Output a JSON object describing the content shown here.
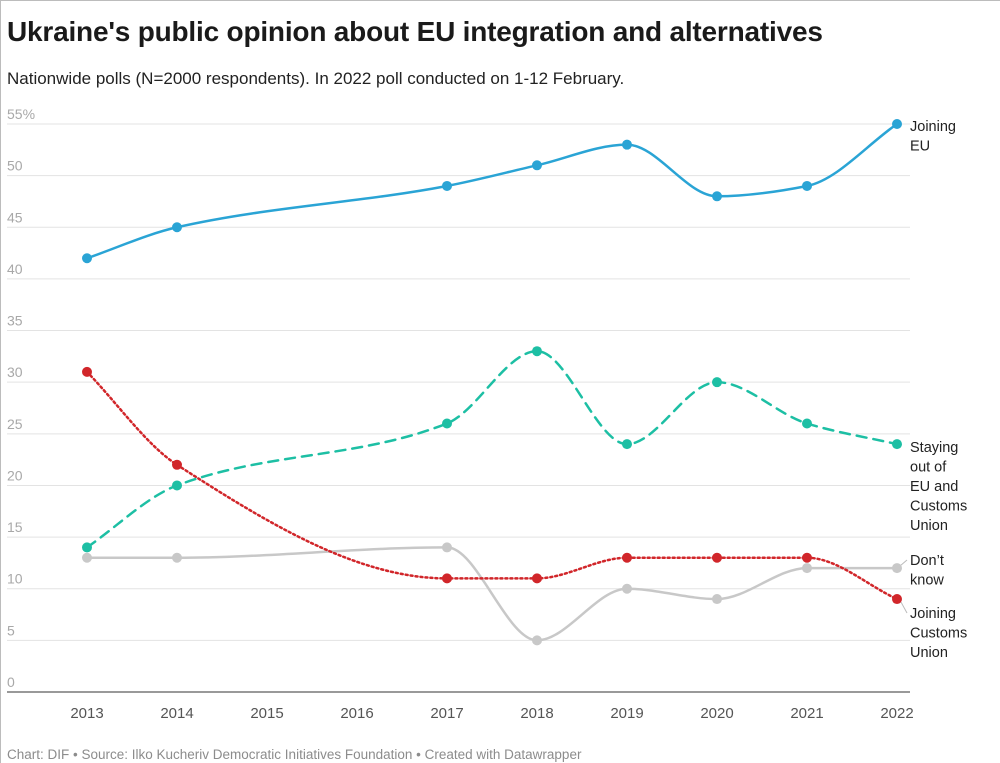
{
  "title": "Ukraine's public opinion about EU integration and alternatives",
  "subtitle": "Nationwide polls (N=2000 respondents). In 2022 poll conducted on 1-12 February.",
  "footer": "Chart: DIF • Source: Ilko Kucheriv Democratic Initiatives Foundation • Created with Datawrapper",
  "chart_data": {
    "type": "line",
    "x": [
      2013,
      2014,
      2015,
      2016,
      2017,
      2018,
      2019,
      2020,
      2021,
      2022
    ],
    "xtick_labels": [
      "2013",
      "2014",
      "2015",
      "2016",
      "2017",
      "2018",
      "2019",
      "2020",
      "2021",
      "2022"
    ],
    "ylim": [
      0,
      55
    ],
    "yticks": [
      0,
      5,
      10,
      15,
      20,
      25,
      30,
      35,
      40,
      45,
      50,
      55
    ],
    "ytick_labels": [
      "0",
      "5",
      "10",
      "15",
      "20",
      "25",
      "30",
      "35",
      "40",
      "45",
      "50",
      "55%"
    ],
    "grid": true,
    "series": [
      {
        "name": "Joining EU",
        "label_lines": [
          "Joining",
          "EU"
        ],
        "color": "#2aa4d5",
        "style": "solid",
        "points": [
          [
            2013,
            42
          ],
          [
            2014,
            45
          ],
          [
            2017,
            49
          ],
          [
            2018,
            51
          ],
          [
            2019,
            53
          ],
          [
            2020,
            48
          ],
          [
            2021,
            49
          ],
          [
            2022,
            55
          ]
        ]
      },
      {
        "name": "Staying out of EU and Customs Union",
        "label_lines": [
          "Staying",
          "out of",
          "EU and",
          "Customs",
          "Union"
        ],
        "color": "#1dbfa4",
        "style": "dashed",
        "points": [
          [
            2013,
            14
          ],
          [
            2014,
            20
          ],
          [
            2017,
            26
          ],
          [
            2018,
            33
          ],
          [
            2019,
            24
          ],
          [
            2020,
            30
          ],
          [
            2021,
            26
          ],
          [
            2022,
            24
          ]
        ]
      },
      {
        "name": "Don’t know",
        "label_lines": [
          "Don’t",
          "know"
        ],
        "color": "#c8c8c8",
        "style": "solid",
        "points": [
          [
            2013,
            13
          ],
          [
            2014,
            13
          ],
          [
            2017,
            14
          ],
          [
            2018,
            5
          ],
          [
            2019,
            10
          ],
          [
            2020,
            9
          ],
          [
            2021,
            12
          ],
          [
            2022,
            12
          ]
        ]
      },
      {
        "name": "Joining Customs Union",
        "label_lines": [
          "Joining",
          "Customs",
          "Union"
        ],
        "color": "#d1262a",
        "style": "dotted",
        "points": [
          [
            2013,
            31
          ],
          [
            2014,
            22
          ],
          [
            2017,
            11
          ],
          [
            2018,
            11
          ],
          [
            2019,
            13
          ],
          [
            2020,
            13
          ],
          [
            2021,
            13
          ],
          [
            2022,
            9
          ]
        ]
      }
    ]
  }
}
